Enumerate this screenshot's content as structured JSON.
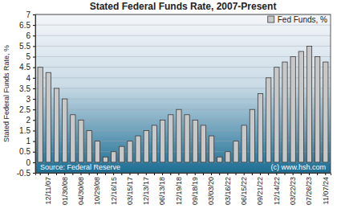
{
  "chart_data": {
    "type": "bar",
    "title": "Stated Federal Funds Rate, 2007-Present",
    "y_label": "Stated Federal Funds Rate, %",
    "annotations": [
      "Source: Federal Reserve",
      "(c) www.hsh.com"
    ],
    "categories": [
      null,
      "12/11/07",
      null,
      "01/30/08",
      null,
      "04/30/08",
      null,
      "10/29/08",
      null,
      "12/16/15",
      null,
      "03/15/17",
      null,
      "12/13/17",
      null,
      "06/13/18",
      null,
      "12/19/18",
      null,
      "09/18/19",
      null,
      "03/03/20",
      null,
      "03/16/22",
      null,
      "06/15/22",
      null,
      "09/21/22",
      null,
      "12/14/22",
      null,
      "03/22/23",
      null,
      "07/26/23",
      null,
      "11/07/24"
    ],
    "series": [
      {
        "name": "Fed Funds, %",
        "color": "#c8c8c8",
        "values": [
          4.5,
          4.25,
          3.5,
          3.0,
          2.25,
          2.0,
          1.5,
          1.0,
          0.25,
          0.5,
          0.75,
          1.0,
          1.25,
          1.5,
          1.75,
          2.0,
          2.25,
          2.5,
          2.25,
          2.0,
          1.75,
          1.25,
          0.25,
          0.5,
          1.0,
          1.75,
          2.5,
          3.25,
          4.0,
          4.5,
          4.75,
          5.0,
          5.25,
          5.5,
          5.0,
          4.75
        ]
      }
    ],
    "ylim": [
      -0.5,
      7
    ],
    "yticks": [
      -0.5,
      0,
      0.5,
      1,
      1.5,
      2,
      2.5,
      3,
      3.5,
      4,
      4.5,
      5,
      5.5,
      6,
      6.5,
      7
    ],
    "grid": true,
    "legend": "upper right"
  }
}
